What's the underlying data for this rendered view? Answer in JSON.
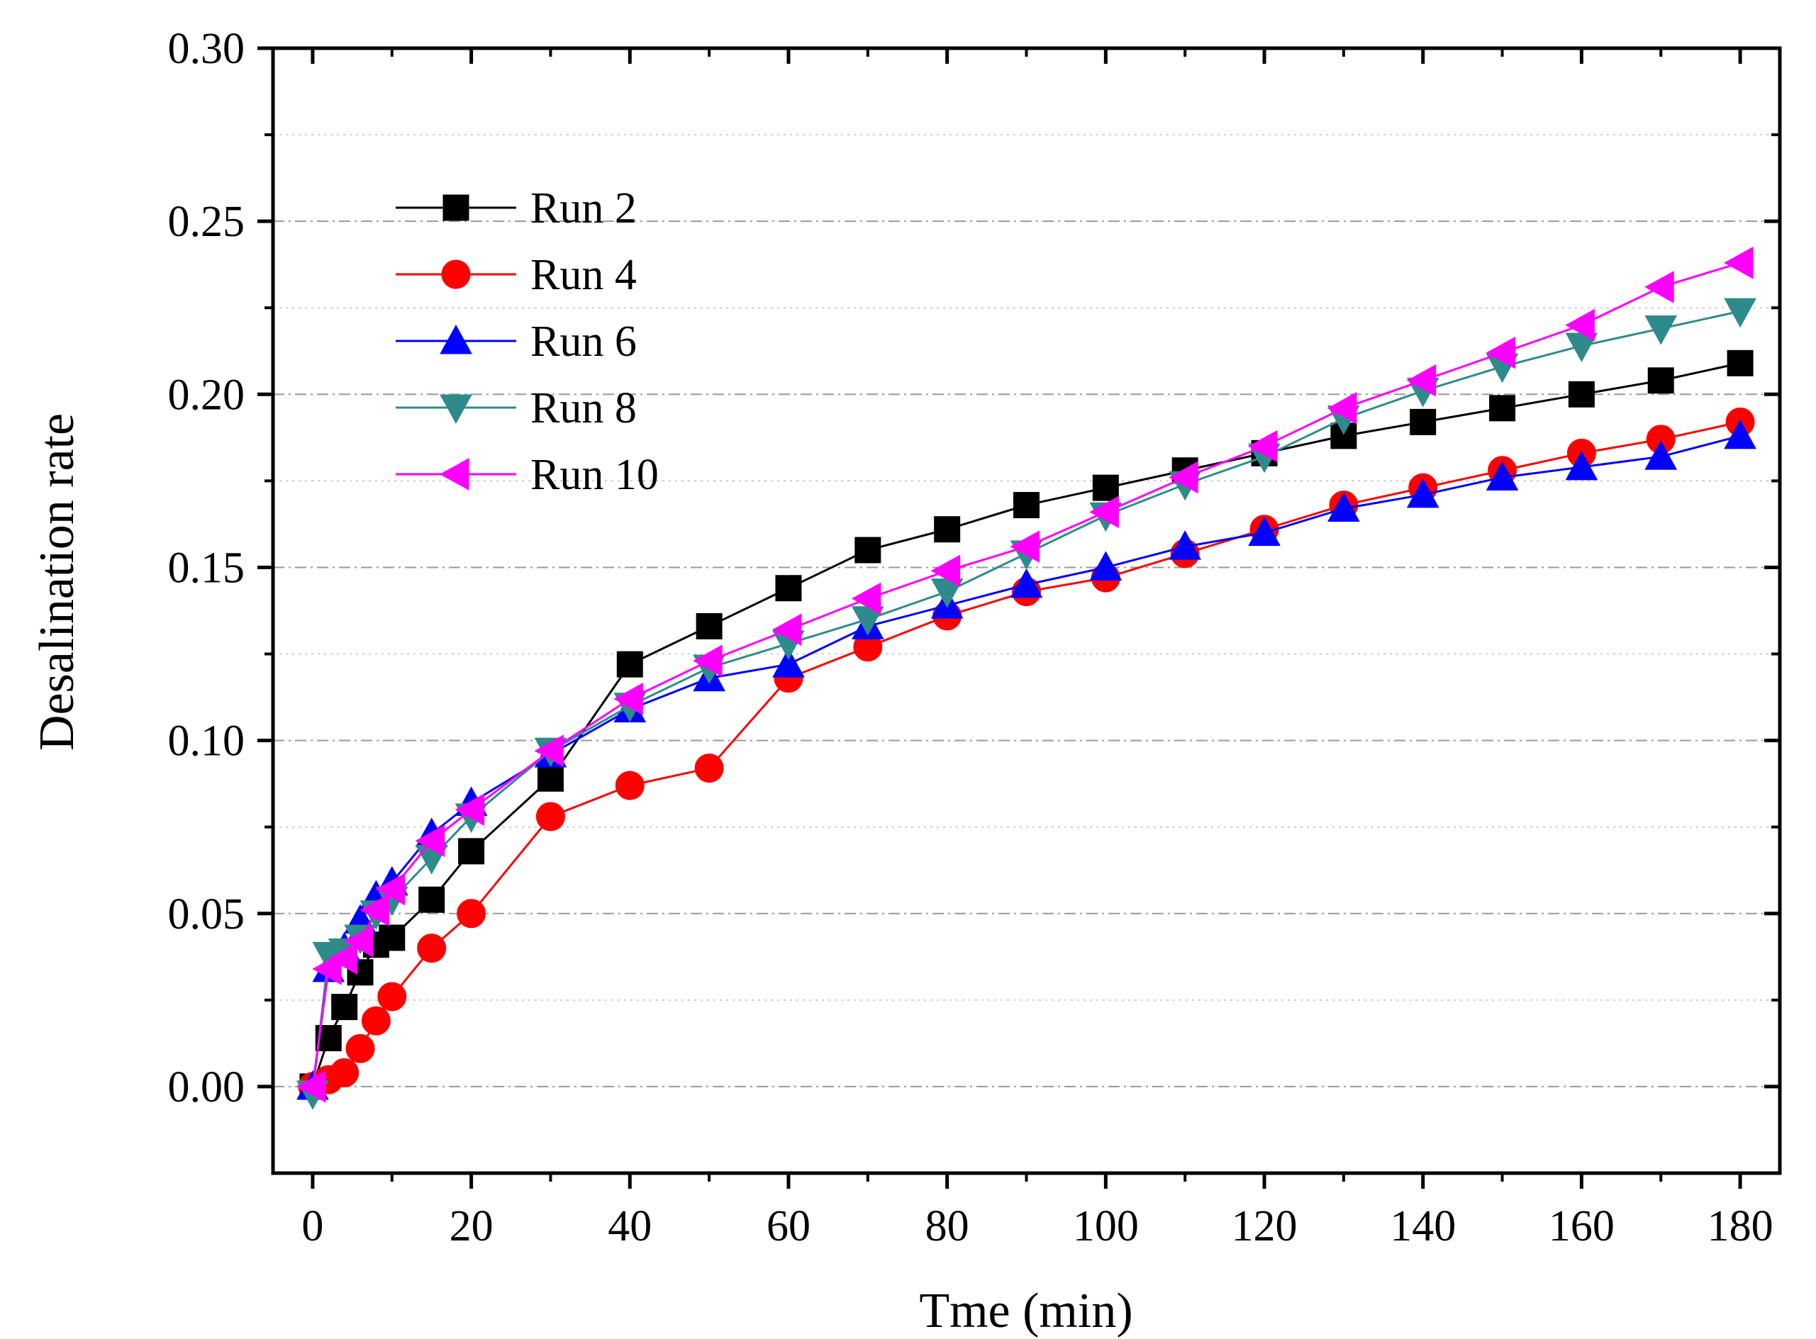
{
  "chart_data": {
    "type": "line",
    "title": "",
    "xlabel": "Tme (min)",
    "ylabel": "Desalination rate",
    "xlim": [
      -5,
      185
    ],
    "ylim": [
      -0.025,
      0.3
    ],
    "xticks": [
      0,
      20,
      40,
      60,
      80,
      100,
      120,
      140,
      160,
      180
    ],
    "xtick_labels": [
      "0",
      "20",
      "40",
      "60",
      "80",
      "100",
      "120",
      "140",
      "160",
      "180"
    ],
    "yticks": [
      0.0,
      0.05,
      0.1,
      0.15,
      0.2,
      0.25,
      0.3
    ],
    "ytick_labels": [
      "0.00",
      "0.05",
      "0.10",
      "0.15",
      "0.20",
      "0.25",
      "0.30"
    ],
    "grid": "horizontal dash-dot",
    "legend_position": "top-left",
    "series": [
      {
        "name": "Run 2",
        "color": "#000000",
        "marker": "square",
        "x": [
          0,
          2,
          4,
          6,
          8,
          10,
          15,
          20,
          30,
          40,
          50,
          60,
          70,
          80,
          90,
          100,
          110,
          120,
          130,
          140,
          150,
          160,
          170,
          180
        ],
        "y": [
          0.0,
          0.014,
          0.023,
          0.033,
          0.041,
          0.043,
          0.054,
          0.068,
          0.089,
          0.122,
          0.133,
          0.144,
          0.155,
          0.161,
          0.168,
          0.173,
          0.178,
          0.183,
          0.188,
          0.192,
          0.196,
          0.2,
          0.204,
          0.209
        ]
      },
      {
        "name": "Run 4",
        "color": "#ff0000",
        "marker": "circle",
        "x": [
          0,
          2,
          4,
          6,
          8,
          10,
          15,
          20,
          30,
          40,
          50,
          60,
          70,
          80,
          90,
          100,
          110,
          120,
          130,
          140,
          150,
          160,
          170,
          180
        ],
        "y": [
          0.0,
          0.002,
          0.004,
          0.011,
          0.019,
          0.026,
          0.04,
          0.05,
          0.078,
          0.087,
          0.092,
          0.118,
          0.127,
          0.136,
          0.143,
          0.147,
          0.154,
          0.161,
          0.168,
          0.173,
          0.178,
          0.183,
          0.187,
          0.192
        ]
      },
      {
        "name": "Run 6",
        "color": "#0000ff",
        "marker": "triangle-up",
        "x": [
          0,
          2,
          4,
          6,
          8,
          10,
          15,
          20,
          30,
          40,
          50,
          60,
          70,
          80,
          90,
          100,
          110,
          120,
          130,
          140,
          150,
          160,
          170,
          180
        ],
        "y": [
          0.0,
          0.034,
          0.04,
          0.048,
          0.055,
          0.059,
          0.073,
          0.082,
          0.096,
          0.109,
          0.118,
          0.122,
          0.133,
          0.139,
          0.145,
          0.15,
          0.156,
          0.16,
          0.167,
          0.171,
          0.176,
          0.179,
          0.182,
          0.188
        ]
      },
      {
        "name": "Run 8",
        "color": "#2e8b8b",
        "marker": "triangle-down",
        "x": [
          0,
          2,
          4,
          6,
          8,
          10,
          15,
          20,
          30,
          40,
          50,
          60,
          70,
          80,
          90,
          100,
          110,
          120,
          130,
          140,
          150,
          160,
          170,
          180
        ],
        "y": [
          -0.002,
          0.038,
          0.039,
          0.043,
          0.05,
          0.054,
          0.066,
          0.078,
          0.097,
          0.11,
          0.121,
          0.128,
          0.135,
          0.143,
          0.154,
          0.165,
          0.174,
          0.182,
          0.193,
          0.201,
          0.208,
          0.214,
          0.219,
          0.224
        ]
      },
      {
        "name": "Run 10",
        "color": "#ff00ff",
        "marker": "triangle-left",
        "x": [
          0,
          2,
          4,
          6,
          8,
          10,
          15,
          20,
          30,
          40,
          50,
          60,
          70,
          80,
          90,
          100,
          110,
          120,
          130,
          140,
          150,
          160,
          170,
          180
        ],
        "y": [
          0.0,
          0.034,
          0.037,
          0.042,
          0.051,
          0.057,
          0.071,
          0.08,
          0.097,
          0.112,
          0.123,
          0.132,
          0.141,
          0.149,
          0.156,
          0.166,
          0.176,
          0.185,
          0.196,
          0.204,
          0.212,
          0.22,
          0.231,
          0.238
        ]
      }
    ]
  }
}
